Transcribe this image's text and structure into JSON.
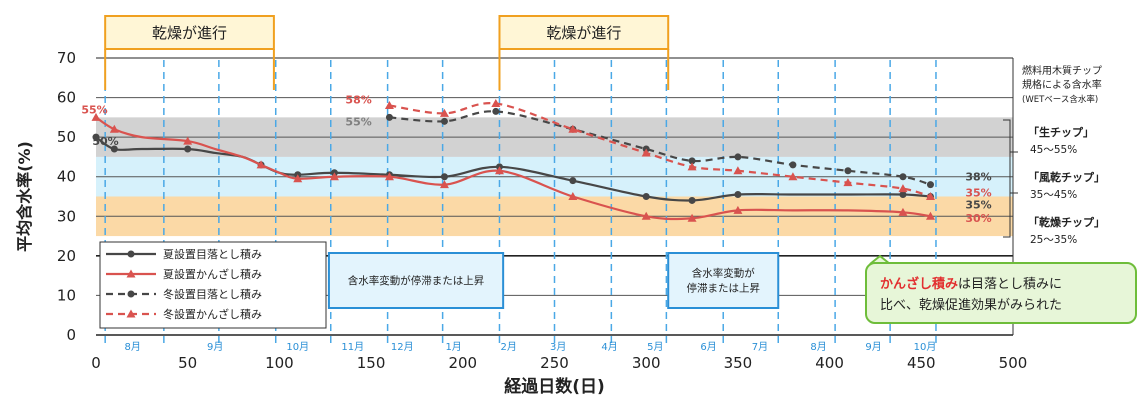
{
  "chart_data": {
    "type": "line",
    "xlabel": "経過日数(日)",
    "ylabel": "平均含水率(%)",
    "xlim": [
      0,
      500
    ],
    "ylim": [
      0,
      70
    ],
    "x_ticks": [
      "0",
      "50",
      "100",
      "150",
      "200",
      "250",
      "300",
      "350",
      "400",
      "450",
      "500"
    ],
    "y_ticks": [
      "0",
      "10",
      "20",
      "30",
      "40",
      "50",
      "60",
      "70"
    ],
    "grid": true,
    "legend_position": "bottom-left",
    "months": [
      {
        "label": "8月",
        "x": 20
      },
      {
        "label": "9月",
        "x": 65
      },
      {
        "label": "10月",
        "x": 110
      },
      {
        "label": "11月",
        "x": 140
      },
      {
        "label": "12月",
        "x": 167
      },
      {
        "label": "1月",
        "x": 195
      },
      {
        "label": "2月",
        "x": 225
      },
      {
        "label": "3月",
        "x": 252
      },
      {
        "label": "4月",
        "x": 280
      },
      {
        "label": "5月",
        "x": 305
      },
      {
        "label": "6月",
        "x": 334
      },
      {
        "label": "7月",
        "x": 362
      },
      {
        "label": "8月",
        "x": 394
      },
      {
        "label": "9月",
        "x": 424
      },
      {
        "label": "10月",
        "x": 452
      }
    ],
    "month_boundaries": [
      5,
      37,
      67,
      98,
      128,
      159,
      189,
      220,
      250,
      281,
      311,
      342,
      372,
      403,
      433,
      458
    ],
    "drying_periods": [
      {
        "label": "乾燥が進行",
        "x_start": 5,
        "x_end": 97
      },
      {
        "label": "乾燥が進行",
        "x_start": 220,
        "x_end": 312
      }
    ],
    "stagnation_notes": [
      {
        "lines": [
          "含水率変動が停滞または上昇"
        ],
        "x_start": 127,
        "x_end": 222
      },
      {
        "lines": [
          "含水率変動が",
          "停滞または上昇"
        ],
        "x_start": 312,
        "x_end": 372
      }
    ],
    "bands": [
      {
        "name": "生チップ",
        "y_range": [
          45,
          55
        ],
        "color": "#d2d2d2"
      },
      {
        "name": "風乾チップ",
        "y_range": [
          35,
          45
        ],
        "color": "#d6f1fb"
      },
      {
        "name": "乾燥チップ",
        "y_range": [
          25,
          35
        ],
        "color": "#fbd9a6"
      }
    ],
    "band_heading": [
      "燃料用木質チップ",
      "規格による含水率",
      "(WETベース含水率)"
    ],
    "band_labels": [
      {
        "name": "「生チップ」",
        "range": "45〜55%"
      },
      {
        "name": "「風乾チップ」",
        "range": "35〜45%"
      },
      {
        "name": "「乾燥チップ」",
        "range": "25〜35%"
      }
    ],
    "series": [
      {
        "name": "夏設置目落とし積み",
        "color": "#474747",
        "dash": false,
        "marker": "circle",
        "x": [
          0,
          10,
          25,
          50,
          65,
          80,
          90,
          100,
          110,
          130,
          160,
          190,
          220,
          260,
          300,
          325,
          350,
          380,
          410,
          440,
          455
        ],
        "y": [
          50,
          47,
          47,
          47,
          46,
          45,
          43,
          41,
          40.5,
          41,
          40.5,
          40,
          42.5,
          39,
          35,
          34,
          35.5,
          35.5,
          35.5,
          35.5,
          35
        ]
      },
      {
        "name": "夏設置かんざし積み",
        "color": "#d9534f",
        "dash": false,
        "marker": "triangle",
        "x": [
          0,
          10,
          25,
          50,
          65,
          80,
          90,
          100,
          110,
          130,
          160,
          190,
          220,
          260,
          300,
          325,
          350,
          380,
          410,
          440,
          455
        ],
        "y": [
          55,
          52,
          50,
          49,
          47,
          45,
          43,
          41,
          39.5,
          40,
          40,
          38,
          41.5,
          35,
          30,
          29.5,
          31.5,
          31.5,
          31.5,
          31,
          30
        ]
      },
      {
        "name": "冬設置目落とし積み",
        "color": "#474747",
        "dash": true,
        "marker": "circle",
        "x": [
          160,
          190,
          218,
          260,
          300,
          325,
          350,
          380,
          410,
          440,
          455
        ],
        "y": [
          55,
          54,
          56.5,
          52,
          47,
          44,
          45,
          43,
          41.5,
          40,
          38
        ]
      },
      {
        "name": "冬設置かんざし積み",
        "color": "#d9534f",
        "dash": true,
        "marker": "triangle",
        "x": [
          160,
          190,
          218,
          260,
          300,
          325,
          350,
          380,
          410,
          440,
          455
        ],
        "y": [
          58,
          56,
          58.5,
          52,
          46,
          42.5,
          41.5,
          40,
          38.5,
          37,
          35
        ]
      }
    ],
    "annotations": [
      {
        "text": "55%",
        "x": -8,
        "y": 56,
        "color": "#d9534f"
      },
      {
        "text": "50%",
        "x": -2,
        "y": 48,
        "color": "#474747"
      },
      {
        "text": "58%",
        "x": 136,
        "y": 58.5,
        "color": "#d9534f"
      },
      {
        "text": "55%",
        "x": 136,
        "y": 53,
        "color": "#808080"
      },
      {
        "text": "38%",
        "x": 474,
        "y": 39,
        "color": "#474747"
      },
      {
        "text": "35%",
        "x": 474,
        "y": 35,
        "color": "#d9534f"
      },
      {
        "text": "35%",
        "x": 474,
        "y": 32,
        "color": "#474747"
      },
      {
        "text": "30%",
        "x": 474,
        "y": 28.5,
        "color": "#d9534f"
      }
    ],
    "conclusion": {
      "highlight": "かんざし積み",
      "line1_rest": "は目落とし積みに",
      "line2": "比べ、乾燥促進効果がみられた"
    }
  }
}
